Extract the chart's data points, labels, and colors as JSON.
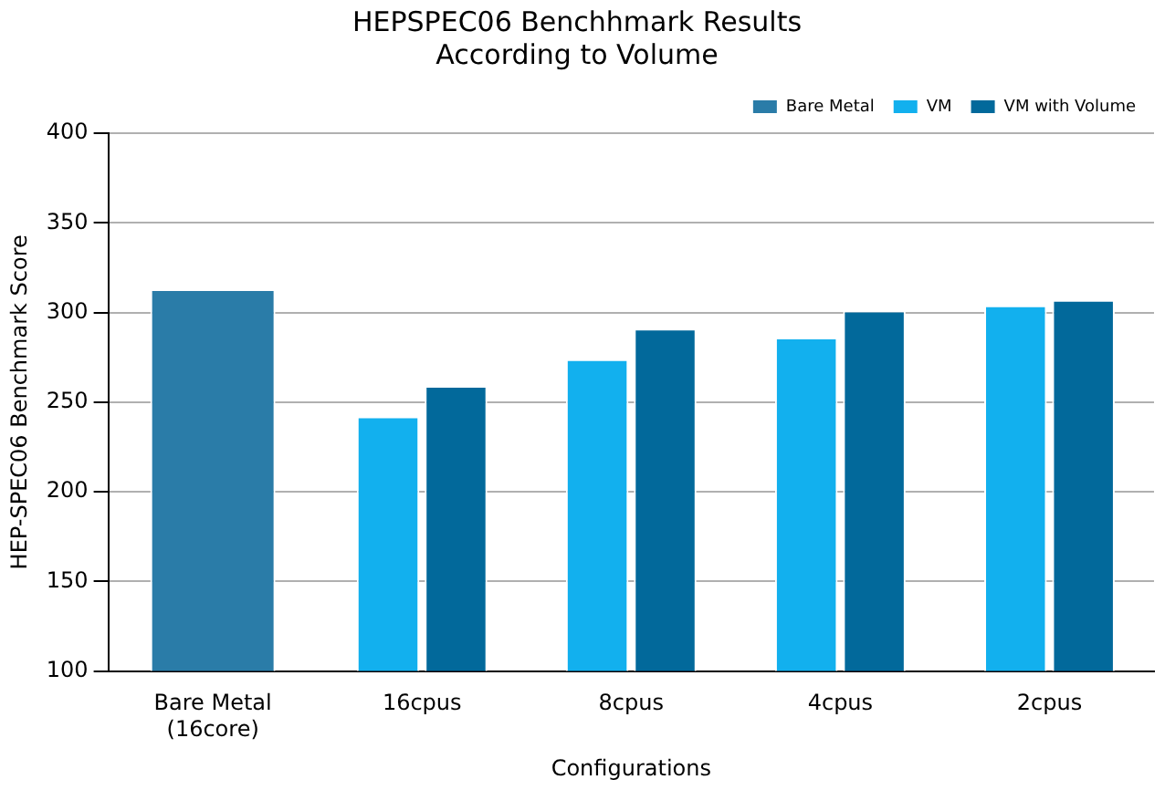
{
  "chart_data": {
    "type": "bar",
    "title": "HEPSPEC06 Benchhmark Results\nAccording to Volume",
    "xlabel": "Configurations",
    "ylabel": "HEP-SPEC06 Benchmark Score",
    "categories": [
      "Bare Metal\n(16core)",
      "16cpus",
      "8cpus",
      "4cpus",
      "2cpus"
    ],
    "series": [
      {
        "name": "Bare Metal",
        "color": "#2a7ca8",
        "values": [
          313,
          null,
          null,
          null,
          null
        ]
      },
      {
        "name": "VM",
        "color": "#12b0ee",
        "values": [
          null,
          242,
          274,
          286,
          304
        ]
      },
      {
        "name": "VM with Volume",
        "color": "#02699b",
        "values": [
          null,
          259,
          291,
          301,
          307
        ]
      }
    ],
    "ylim": [
      100,
      400
    ],
    "yticks": [
      100,
      150,
      200,
      250,
      300,
      350,
      400
    ],
    "grid": "y",
    "legend": "top right"
  }
}
